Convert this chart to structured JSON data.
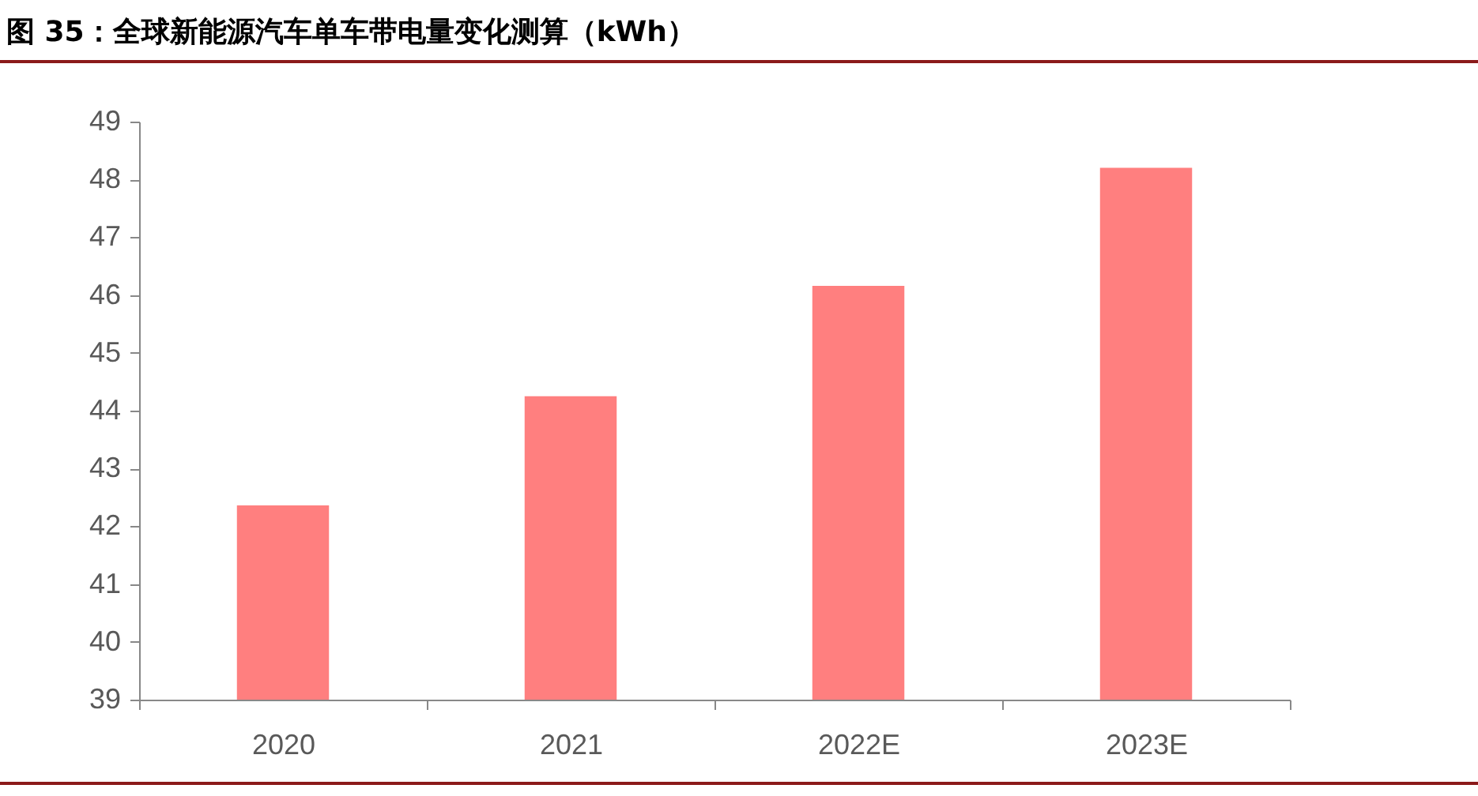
{
  "chart_data": {
    "type": "bar",
    "title": "图 35：全球新能源汽车单车带电量变化测算（kWh）",
    "categories": [
      "2020",
      "2021",
      "2022E",
      "2023E"
    ],
    "values": [
      42.36,
      44.25,
      46.16,
      48.2
    ],
    "color": "#ff7f7f",
    "ylim": [
      39,
      49
    ],
    "yticks": [
      39,
      40,
      41,
      42,
      43,
      44,
      45,
      46,
      47,
      48,
      49
    ],
    "grid": false
  }
}
